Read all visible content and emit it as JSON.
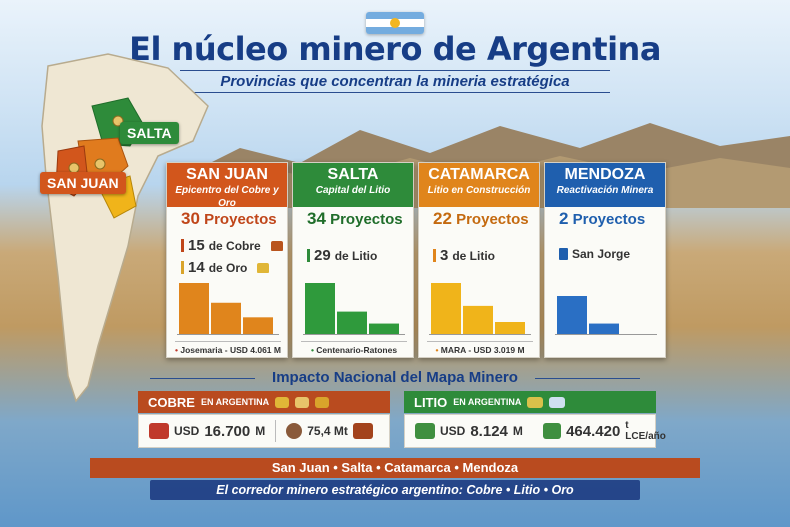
{
  "header": {
    "title": "El núcleo minero de Argentina",
    "subtitle": "Provincias que concentran la mineria estratégica"
  },
  "map": {
    "labels": {
      "salta": "SALTA",
      "san_juan": "SAN JUAN"
    }
  },
  "cards": {
    "san_juan": {
      "name": "SAN JUAN",
      "sub": "Epicentro del Cobre y Oro",
      "projects_num": "30",
      "projects_label": "Proyectos",
      "row1_num": "15",
      "row1_text": "de Cobre",
      "row2_num": "14",
      "row2_text": "de Oro",
      "footer": "Josemaria - USD 4.061 M",
      "bars": [
        1.0,
        0.62,
        0.34
      ],
      "color": "#e0851c"
    },
    "salta": {
      "name": "SALTA",
      "sub": "Capital del Litio",
      "projects_num": "34",
      "projects_label": "Proyectos",
      "row1_num": "29",
      "row1_text": "de Litio",
      "footer": "Centenario-Ratones",
      "bars": [
        1.0,
        0.45,
        0.22
      ],
      "color": "#2f9a3c"
    },
    "catamarca": {
      "name": "CATAMARCA",
      "sub": "Litio en Construcción",
      "projects_num": "22",
      "projects_label": "Proyectos",
      "row1_num": "3",
      "row1_text": "de Litio",
      "footer": "MARA - USD 3.019 M",
      "bars": [
        1.0,
        0.56,
        0.25
      ],
      "color": "#f0b41a"
    },
    "mendoza": {
      "name": "MENDOZA",
      "sub": "Reactivación Minera",
      "projects_num": "2",
      "projects_label": "Proyectos",
      "row1_text": "San Jorge",
      "bars": [
        0.75,
        0.22
      ],
      "color": "#2a6fc4"
    }
  },
  "impact": {
    "title": "Impacto Nacional del Mapa Minero",
    "cobre": {
      "label": "COBRE",
      "suffix": "EN ARGENTINA",
      "usd_prefix": "USD",
      "usd_value": "16.700",
      "usd_unit": "M",
      "mt_value": "75,4 Mt"
    },
    "litio": {
      "label": "LITIO",
      "suffix": "EN ARGENTINA",
      "usd_prefix": "USD",
      "usd_value": "8.124",
      "usd_unit": "M",
      "lce_value": "464.420",
      "lce_unit": "t LCE/año"
    }
  },
  "bottom": {
    "provinces": "San Juan • Salta • Catamarca • Mendoza",
    "tagline": "El corredor minero estratégico argentino: Cobre • Litio • Oro"
  },
  "colors": {
    "navy": "#173d86",
    "san_juan": "#d2561c",
    "salta": "#2e8b3a",
    "catamarca": "#e0851c",
    "mendoza": "#1f5fae",
    "cobre_band": "#b94b1f",
    "litio_band": "#2e8b3a"
  }
}
